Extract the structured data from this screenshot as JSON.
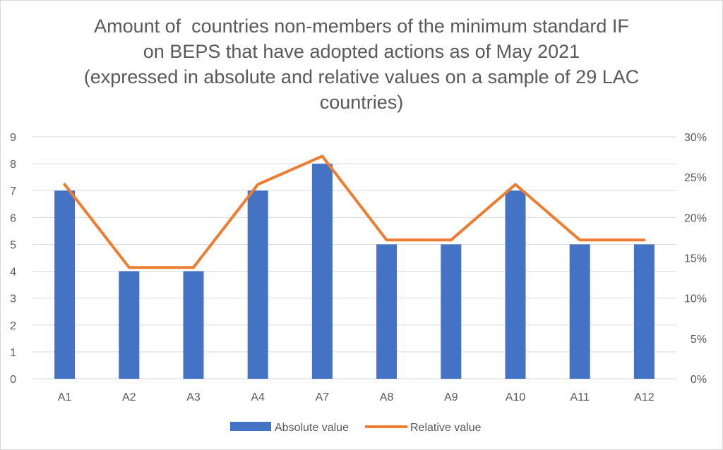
{
  "chart_data": {
    "type": "bar",
    "title_lines": [
      "Amount of  countries non-members of the minimum standard IF",
      "on BEPS that have adopted actions as of May 2021",
      "(expressed in absolute and relative values on a sample of 29 LAC",
      "countries)"
    ],
    "categories": [
      "A1",
      "A2",
      "A3",
      "A4",
      "A7",
      "A8",
      "A9",
      "A10",
      "A11",
      "A12"
    ],
    "series": [
      {
        "name": "Absolute value",
        "type": "bar",
        "axis": "left",
        "color": "#4472C4",
        "values": [
          7,
          4,
          4,
          7,
          8,
          5,
          5,
          7,
          5,
          5
        ]
      },
      {
        "name": "Relative value",
        "type": "line",
        "axis": "right",
        "color": "#ED7D31",
        "values": [
          0.241,
          0.138,
          0.138,
          0.241,
          0.276,
          0.172,
          0.172,
          0.241,
          0.172,
          0.172
        ]
      }
    ],
    "y_left": {
      "min": 0,
      "max": 9,
      "ticks": [
        "0",
        "1",
        "2",
        "3",
        "4",
        "5",
        "6",
        "7",
        "8",
        "9"
      ]
    },
    "y_right": {
      "min": 0,
      "max": 0.3,
      "ticks": [
        "0%",
        "5%",
        "10%",
        "15%",
        "20%",
        "25%",
        "30%"
      ]
    },
    "grid": true,
    "legend_position": "bottom"
  }
}
